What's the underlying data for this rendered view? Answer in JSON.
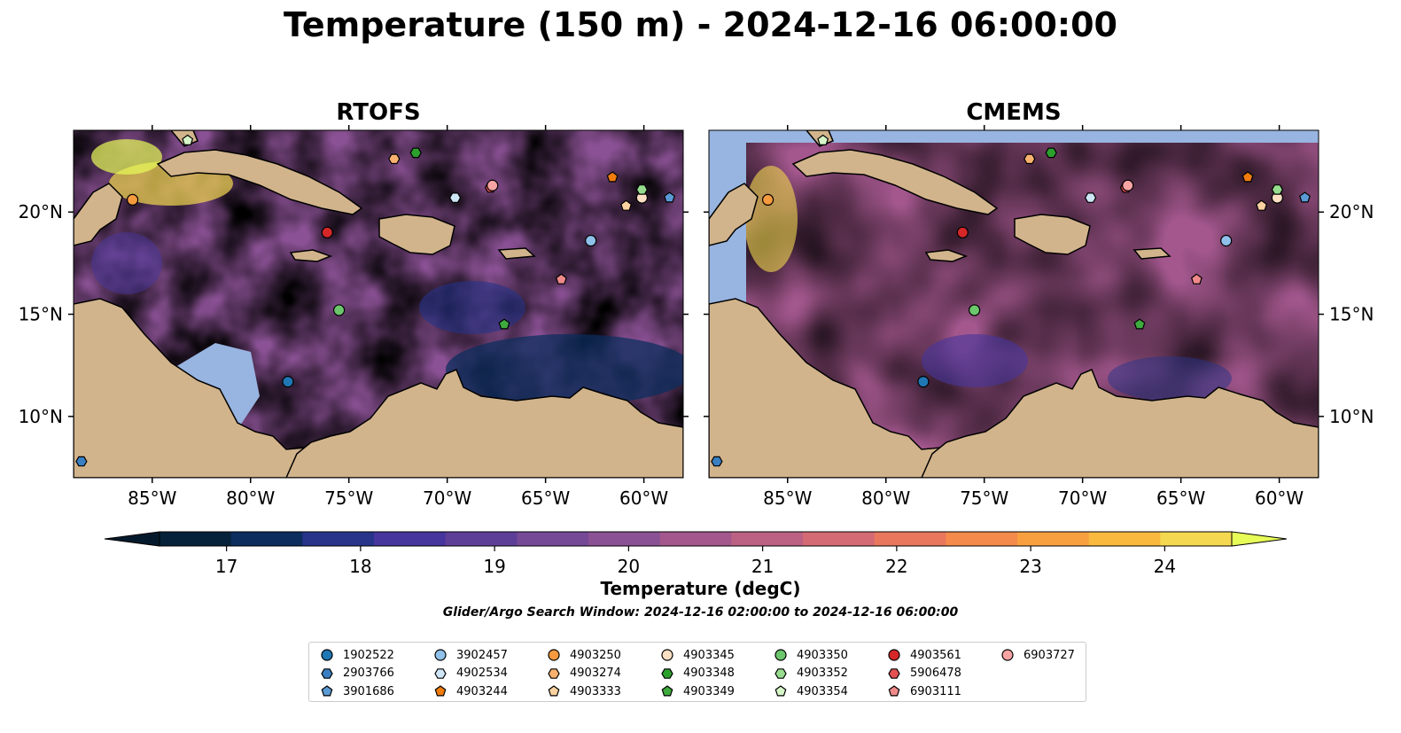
{
  "title": "Temperature (150 m) - 2024-12-16 06:00:00",
  "panels": [
    {
      "title": "RTOFS",
      "id": "rtofs"
    },
    {
      "title": "CMEMS",
      "id": "cmems"
    }
  ],
  "map": {
    "lon_range": [
      -89,
      -58
    ],
    "lat_range": [
      7,
      24
    ],
    "lon_ticks": [
      {
        "value": -85,
        "label": "85°W"
      },
      {
        "value": -80,
        "label": "80°W"
      },
      {
        "value": -75,
        "label": "75°W"
      },
      {
        "value": -70,
        "label": "70°W"
      },
      {
        "value": -65,
        "label": "65°W"
      },
      {
        "value": -60,
        "label": "60°W"
      }
    ],
    "lat_ticks": [
      {
        "value": 10,
        "label": "10°N"
      },
      {
        "value": 15,
        "label": "15°N"
      },
      {
        "value": 20,
        "label": "20°N"
      }
    ],
    "land_color": "#d2b48c",
    "shelf_color": "#98b4e0"
  },
  "colorbar": {
    "label": "Temperature (degC)",
    "min": 16.5,
    "max": 24.5,
    "ticks": [
      "17",
      "18",
      "19",
      "20",
      "21",
      "22",
      "23",
      "24"
    ],
    "colors": [
      "#05223a",
      "#0c2d5e",
      "#27348a",
      "#46359c",
      "#5e3f98",
      "#754996",
      "#8a5194",
      "#a3578d",
      "#bc6184",
      "#d36a74",
      "#e8775e",
      "#f48a4b",
      "#f8a040",
      "#f9b93f",
      "#f4d850"
    ],
    "over_color": "#e8fc58",
    "under_color": "#041a2c"
  },
  "search_window": "Glider/Argo Search Window: 2024-12-16 02:00:00 to 2024-12-16 06:00:00",
  "floats": [
    {
      "id": "1902522",
      "marker": "circle",
      "color": "#1f77b4",
      "lon": -78.1,
      "lat": 11.7
    },
    {
      "id": "2903766",
      "marker": "hexagon",
      "color": "#3a7fc1",
      "lon": -88.6,
      "lat": 7.8
    },
    {
      "id": "3901686",
      "marker": "pentagon",
      "color": "#5b9bd5",
      "lon": -58.7,
      "lat": 20.7
    },
    {
      "id": "3902457",
      "marker": "circle",
      "color": "#8fc1ea",
      "lon": -62.7,
      "lat": 18.6
    },
    {
      "id": "4902534",
      "marker": "hexagon",
      "color": "#cfe6f7",
      "lon": -69.6,
      "lat": 20.7
    },
    {
      "id": "4903244",
      "marker": "pentagon",
      "color": "#f07c0e",
      "lon": -61.6,
      "lat": 21.7
    },
    {
      "id": "4903250",
      "marker": "circle",
      "color": "#f59a3e",
      "lon": -86.0,
      "lat": 20.6
    },
    {
      "id": "4903274",
      "marker": "hexagon",
      "color": "#f8b16e",
      "lon": -72.7,
      "lat": 22.6
    },
    {
      "id": "4903333",
      "marker": "pentagon",
      "color": "#fcd2a0",
      "lon": -60.9,
      "lat": 20.3
    },
    {
      "id": "4903345",
      "marker": "circle",
      "color": "#fde0c4",
      "lon": -60.1,
      "lat": 20.7
    },
    {
      "id": "4903348",
      "marker": "hexagon",
      "color": "#2ca02c",
      "lon": -71.6,
      "lat": 22.9
    },
    {
      "id": "4903349",
      "marker": "pentagon",
      "color": "#3fab3f",
      "lon": -67.1,
      "lat": 14.5
    },
    {
      "id": "4903350",
      "marker": "circle",
      "color": "#6cc66c",
      "lon": -75.5,
      "lat": 15.2
    },
    {
      "id": "4903352",
      "marker": "hexagon",
      "color": "#97dc8e",
      "lon": -60.1,
      "lat": 21.1
    },
    {
      "id": "4903354",
      "marker": "pentagon",
      "color": "#d6f5c8",
      "lon": -83.2,
      "lat": 23.5
    },
    {
      "id": "4903561",
      "marker": "circle",
      "color": "#d62728",
      "lon": -76.1,
      "lat": 19.0
    },
    {
      "id": "5906478",
      "marker": "hexagon",
      "color": "#e35051",
      "lon": -67.8,
      "lat": 21.2
    },
    {
      "id": "6903111",
      "marker": "pentagon",
      "color": "#f08a8a",
      "lon": -64.2,
      "lat": 16.7
    },
    {
      "id": "6903727",
      "marker": "circle",
      "color": "#f9a4a4",
      "lon": -67.7,
      "lat": 21.3
    }
  ]
}
